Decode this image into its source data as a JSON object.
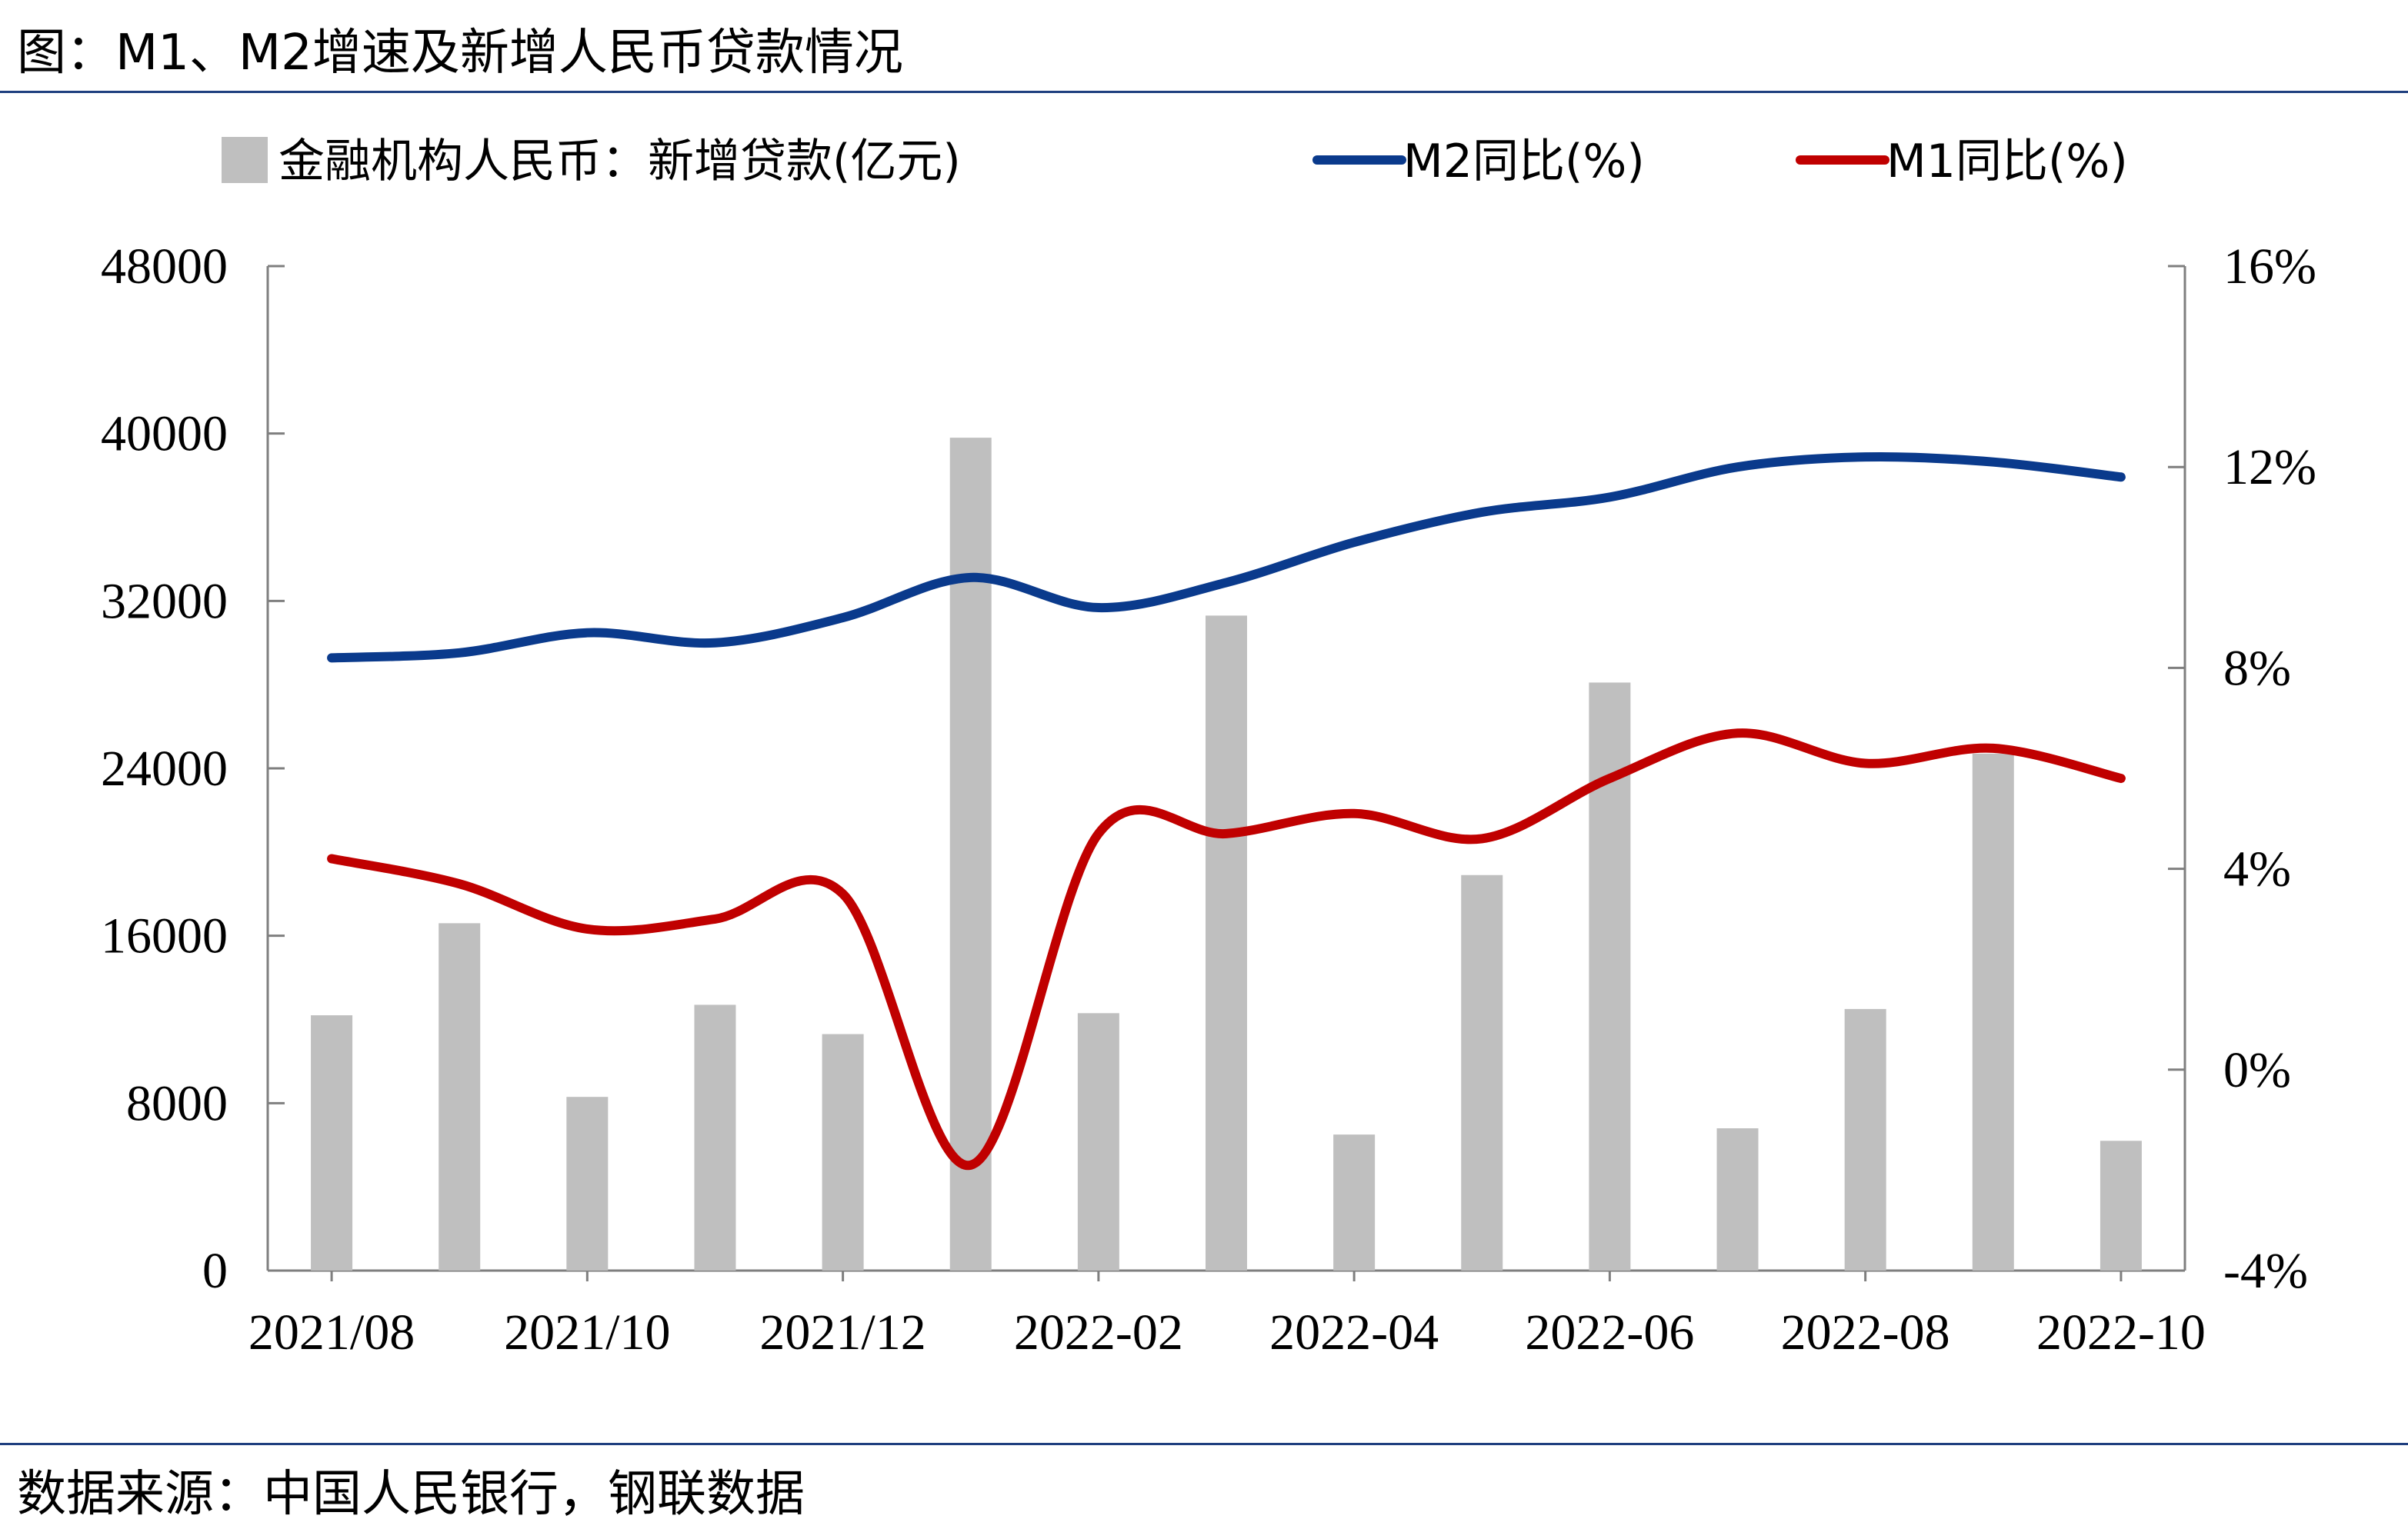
{
  "title": "图：M1、M2增速及新增人民币贷款情况",
  "source": "数据来源：中国人民银行，钢联数据",
  "chart_data": {
    "type": "bar+line",
    "categories": [
      "2021/08",
      "2021/09",
      "2021/10",
      "2021/11",
      "2021/12",
      "2022/01",
      "2022/02",
      "2022/03",
      "2022/04",
      "2022/05",
      "2022/06",
      "2022/07",
      "2022/08",
      "2022/09",
      "2022/10"
    ],
    "x_tick_labels": [
      "2021/08",
      "2021/10",
      "2021/12",
      "2022-02",
      "2022-04",
      "2022-06",
      "2022-08",
      "2022-10"
    ],
    "x_tick_indices": [
      0,
      2,
      4,
      6,
      8,
      10,
      12,
      14
    ],
    "left_axis": {
      "ylim": [
        0,
        48000
      ],
      "ticks": [
        "0",
        "8000",
        "16000",
        "24000",
        "32000",
        "40000",
        "48000"
      ]
    },
    "right_axis": {
      "ylim": [
        -4,
        16
      ],
      "ticks": [
        "-4%",
        "0%",
        "4%",
        "8%",
        "12%",
        "16%"
      ]
    },
    "series": [
      {
        "name": "金融机构人民币：新增贷款(亿元)",
        "kind": "bar",
        "axis": "left",
        "color": "#bfbfbf",
        "values": [
          12200,
          16600,
          8300,
          12700,
          11300,
          39800,
          12300,
          31300,
          6500,
          18900,
          28100,
          6800,
          12500,
          24700,
          6200
        ]
      },
      {
        "name": "M2同比(%)",
        "kind": "line",
        "axis": "right",
        "color": "#0a3a8c",
        "values": [
          8.2,
          8.3,
          8.7,
          8.5,
          9.0,
          9.8,
          9.2,
          9.7,
          10.5,
          11.1,
          11.4,
          12.0,
          12.2,
          12.1,
          11.8
        ]
      },
      {
        "name": "M1同比(%)",
        "kind": "line",
        "axis": "right",
        "color": "#c00000",
        "values": [
          4.2,
          3.7,
          2.8,
          3.0,
          3.5,
          -1.9,
          4.7,
          4.7,
          5.1,
          4.6,
          5.8,
          6.7,
          6.1,
          6.4,
          5.8
        ]
      }
    ],
    "grid": false,
    "legend": "top"
  }
}
